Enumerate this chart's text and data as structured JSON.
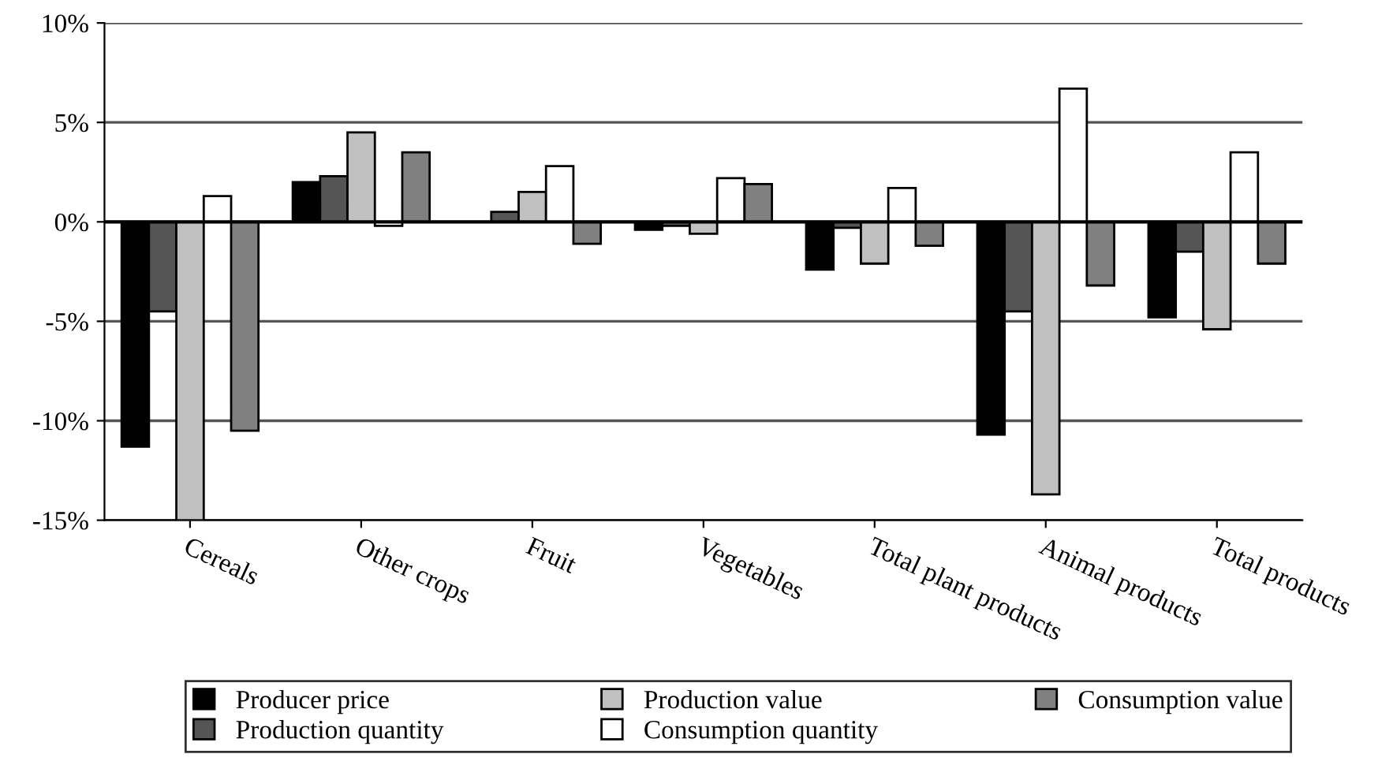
{
  "chart_data": {
    "type": "bar",
    "categories": [
      "Cereals",
      "Other crops",
      "Fruit",
      "Vegetables",
      "Total plant products",
      "Animal products",
      "Total products"
    ],
    "series": [
      {
        "name": "Producer price",
        "color": "#000000",
        "values": [
          -11.3,
          2.0,
          0.0,
          -0.4,
          -2.4,
          -10.7,
          -4.8
        ]
      },
      {
        "name": "Production quantity",
        "color": "#555555",
        "values": [
          -4.5,
          2.3,
          0.5,
          -0.2,
          -0.3,
          -4.5,
          -1.5
        ]
      },
      {
        "name": "Production value",
        "color": "#c0c0c0",
        "values": [
          -15.0,
          4.5,
          1.5,
          -0.6,
          -2.1,
          -13.7,
          -5.4
        ]
      },
      {
        "name": "Consumption quantity",
        "color": "#ffffff",
        "values": [
          1.3,
          -0.2,
          2.8,
          2.2,
          1.7,
          6.7,
          3.5
        ]
      },
      {
        "name": "Consumption value",
        "color": "#808080",
        "values": [
          -10.5,
          3.5,
          -1.1,
          1.9,
          -1.2,
          -3.2,
          -2.1
        ]
      }
    ],
    "ylim": [
      -15,
      10
    ],
    "yticks": [
      {
        "value": -15,
        "label": "-15%"
      },
      {
        "value": -10,
        "label": "-10%"
      },
      {
        "value": -5,
        "label": "-5%"
      },
      {
        "value": 0,
        "label": "0%"
      },
      {
        "value": 5,
        "label": "5%"
      },
      {
        "value": 10,
        "label": "10%"
      }
    ],
    "grid": "y",
    "legend": "bottom"
  }
}
